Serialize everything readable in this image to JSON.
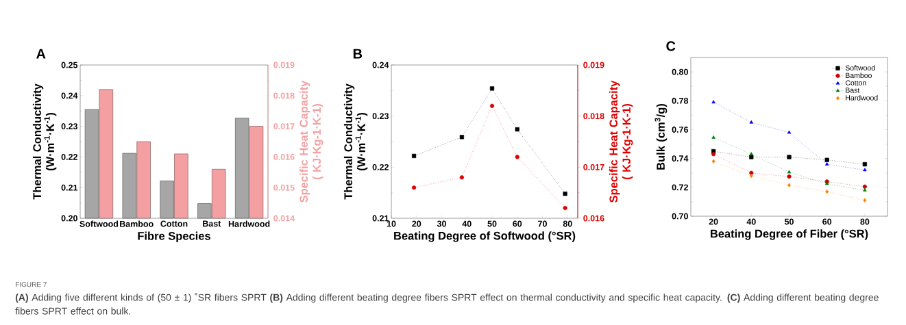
{
  "chart_data": [
    {
      "type": "bar",
      "title": "A",
      "xlabel": "Fibre Species",
      "ylabel": "Thermal Conductivity (W·m$^{-1}$·K$^{-1}$)",
      "y2label": "Specific Heat Capacity ( KJ·Kg-1·K-1)",
      "categories": [
        "Softwood",
        "Bamboo",
        "Cotton",
        "Bast",
        "Hardwood"
      ],
      "series": [
        {
          "color": "#a6a6a6",
          "values": [
            0.2355,
            0.2212,
            0.2122,
            0.2048,
            0.2327
          ]
        },
        {
          "color": "#f4a0a3",
          "axis": "y2",
          "values": [
            0.0182,
            0.0165,
            0.0161,
            0.0156,
            0.017
          ]
        }
      ],
      "ylim": [
        0.2,
        0.25
      ],
      "yticks": [
        {
          "value": 0.2,
          "label": "0.20"
        },
        0.21,
        0.22,
        0.23,
        0.24,
        0.25
      ],
      "y2lim": [
        0.014,
        0.019
      ],
      "y2ticks": [
        0.014,
        0.015,
        0.016,
        0.017,
        0.018,
        0.019
      ],
      "grid": false,
      "legend": false,
      "annotations": [
        "FIGURE 7",
        "**(A)** Adding five different kinds of (50 ± 1) ˚SR fibers SPRT **(B)** Adding different beating degree fibers SPRT effect on thermal conductivity and specific heat capacity. **(C)** Adding different beating degree fibers SPRT effect on bulk."
      ]
    },
    {
      "type": "line",
      "title": "B",
      "xlabel": "Beating Degree of Softwood (°SR)",
      "ylabel": "Thermal Conductivity (W·m$^{-1}$·K$^{-1}$)",
      "y2label": "Specific Heat Capacity ( KJ·Kg-1·K-1)",
      "x": [
        19,
        38,
        50,
        60,
        79
      ],
      "series": [
        {
          "color": "#000000",
          "marker": "square",
          "values": [
            0.2222,
            0.2259,
            0.2354,
            0.2274,
            0.2148
          ]
        },
        {
          "color": "#dd0000",
          "marker": "circle",
          "axis": "y2",
          "values": [
            0.0166,
            0.0168,
            0.0182,
            0.0172,
            0.0162
          ]
        }
      ],
      "xlim": [
        10,
        84
      ],
      "xticks": [
        10,
        20,
        30,
        40,
        50,
        60,
        70,
        80
      ],
      "ylim": [
        0.21,
        0.24
      ],
      "yticks": [
        0.21,
        0.22,
        0.23,
        0.24
      ],
      "y2lim": [
        0.016,
        0.019
      ],
      "y2ticks": [
        0.016,
        0.017,
        0.018,
        0.019
      ],
      "line_style": "dotted",
      "grid": false,
      "legend": false
    },
    {
      "type": "line",
      "title": "C",
      "xlabel": "Beating Degree of Fiber (°SR)",
      "ylabel": "Bulk (cm$^{3}$/g)",
      "categories": [
        "20",
        "40",
        "50",
        "60",
        "80"
      ],
      "series": [
        {
          "name": "Softwood",
          "color": "#000000",
          "marker": "square",
          "values": [
            0.745,
            0.741,
            0.741,
            0.739,
            0.736
          ]
        },
        {
          "name": "Bamboo",
          "color": "#cc0000",
          "marker": "circle",
          "values": [
            0.743,
            0.73,
            0.7275,
            0.724,
            0.7205
          ]
        },
        {
          "name": "Cotton",
          "color": "#0000ff",
          "marker": "triangle",
          "values": [
            0.779,
            0.765,
            0.758,
            0.736,
            0.732
          ]
        },
        {
          "name": "Bast",
          "color": "#008000",
          "marker": "triangle-down",
          "values": [
            0.7545,
            0.743,
            0.7305,
            0.7225,
            0.718
          ]
        },
        {
          "name": "Hardwood",
          "color": "#ff8000",
          "marker": "diamond",
          "values": [
            0.738,
            0.728,
            0.7215,
            0.717,
            0.711
          ]
        }
      ],
      "ylim": [
        0.7,
        0.81
      ],
      "yticks": [
        {
          "value": 0.7,
          "label": "0.70"
        },
        0.72,
        0.74,
        0.76,
        0.78,
        {
          "value": 0.8,
          "label": "0.80"
        }
      ],
      "line_style": "dotted",
      "grid": false,
      "legend": "top right"
    }
  ]
}
